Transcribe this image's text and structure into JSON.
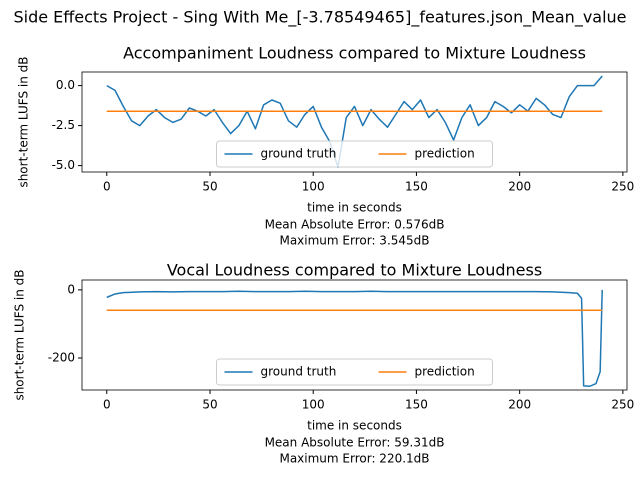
{
  "title": "Side Effects Project - Sing With Me_[-3.78549465]_features.json_Mean_value",
  "chart_data": [
    {
      "type": "line",
      "title": "Accompaniment Loudness compared to Mixture Loudness",
      "xlabel": "time in seconds",
      "ylabel": "short-term LUFS in dB",
      "annotations": [
        "Mean Absolute Error: 0.576dB",
        "Maximum Error: 3.545dB"
      ],
      "xlim": [
        -12,
        252
      ],
      "xticks": [
        0,
        50,
        100,
        150,
        200,
        250
      ],
      "ylim": [
        -5.4,
        0.85
      ],
      "yticks": [
        {
          "value": 0,
          "label": "0.0"
        },
        -2.5,
        {
          "value": -5,
          "label": "-5.0"
        }
      ],
      "legend": "lower center",
      "series": [
        {
          "name": "ground truth",
          "color": "#1f77b4",
          "x": [
            0,
            4,
            8,
            12,
            16,
            20,
            24,
            28,
            32,
            36,
            40,
            44,
            48,
            52,
            56,
            60,
            64,
            68,
            72,
            76,
            80,
            84,
            88,
            92,
            96,
            100,
            104,
            108,
            112,
            116,
            120,
            124,
            128,
            132,
            136,
            140,
            144,
            148,
            152,
            156,
            160,
            164,
            168,
            172,
            176,
            180,
            184,
            188,
            192,
            196,
            200,
            204,
            208,
            212,
            216,
            220,
            224,
            228,
            232,
            236,
            240
          ],
          "values": [
            0,
            -0.3,
            -1.3,
            -2.2,
            -2.5,
            -1.9,
            -1.5,
            -2.0,
            -2.3,
            -2.1,
            -1.4,
            -1.6,
            -1.9,
            -1.5,
            -2.3,
            -3.0,
            -2.5,
            -1.6,
            -2.7,
            -1.2,
            -0.9,
            -1.1,
            -2.2,
            -2.6,
            -1.8,
            -1.3,
            -2.6,
            -3.5,
            -5.1,
            -2.0,
            -1.3,
            -2.5,
            -1.5,
            -2.1,
            -2.6,
            -1.8,
            -1.0,
            -1.5,
            -0.9,
            -2.0,
            -1.5,
            -2.3,
            -3.4,
            -2.0,
            -1.2,
            -2.5,
            -2.0,
            -1.0,
            -1.3,
            -1.7,
            -1.2,
            -1.6,
            -0.8,
            -1.2,
            -1.8,
            -2.0,
            -0.7,
            0,
            0,
            0,
            0.6
          ]
        },
        {
          "name": "prediction",
          "color": "#ff7f0e",
          "x": [
            0,
            240
          ],
          "values": [
            -1.6,
            -1.6
          ]
        }
      ]
    },
    {
      "type": "line",
      "title": "Vocal Loudness compared to Mixture Loudness",
      "xlabel": "time in seconds",
      "ylabel": "short-term LUFS in dB",
      "annotations": [
        "Mean Absolute Error: 59.31dB",
        "Maximum Error: 220.1dB"
      ],
      "xlim": [
        -12,
        252
      ],
      "xticks": [
        0,
        50,
        100,
        150,
        200,
        250
      ],
      "ylim": [
        -294,
        29
      ],
      "yticks": [
        0,
        -200
      ],
      "legend": "lower center",
      "series": [
        {
          "name": "ground truth",
          "color": "#1f77b4",
          "x": [
            0,
            4,
            8,
            16,
            24,
            32,
            40,
            48,
            56,
            64,
            72,
            80,
            88,
            96,
            104,
            112,
            120,
            128,
            136,
            144,
            152,
            160,
            168,
            176,
            184,
            192,
            200,
            208,
            216,
            224,
            228,
            230,
            231,
            234,
            237,
            239,
            240
          ],
          "values": [
            -22,
            -12,
            -8,
            -6,
            -5,
            -6,
            -5,
            -5,
            -5,
            -4,
            -5,
            -5,
            -5,
            -4,
            -5,
            -5,
            -5,
            -4,
            -5,
            -5,
            -5,
            -5,
            -5,
            -5,
            -5,
            -5,
            -5,
            -5,
            -6,
            -8,
            -10,
            -25,
            -282,
            -283,
            -275,
            -240,
            0
          ]
        },
        {
          "name": "prediction",
          "color": "#ff7f0e",
          "x": [
            0,
            240
          ],
          "values": [
            -60,
            -60
          ]
        }
      ]
    }
  ]
}
